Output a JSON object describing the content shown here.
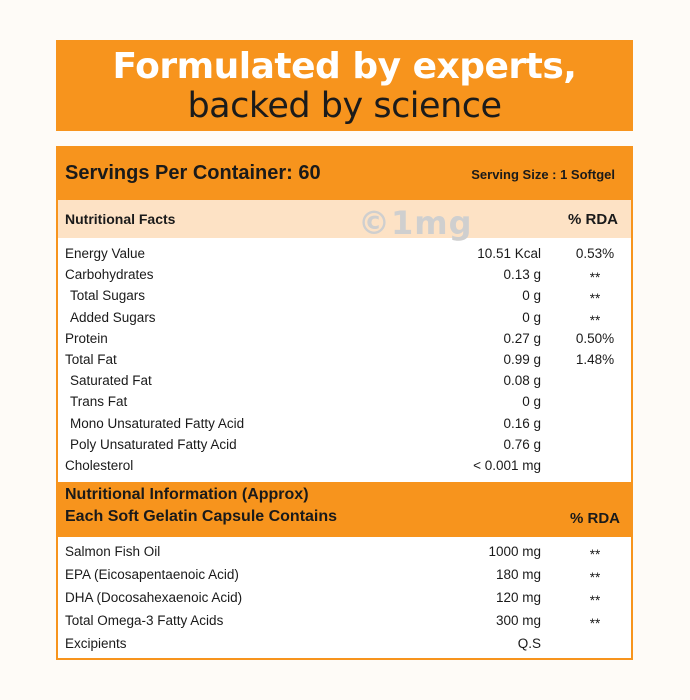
{
  "banner": {
    "line1": "Formulated by experts,",
    "line2": "backed by science"
  },
  "watermark": "©1mg",
  "facts": {
    "servings": "Servings Per Container: 60",
    "serving_size": "Serving Size : 1 Softgel",
    "title": "Nutritional Facts",
    "rda_header": "% RDA",
    "rows": [
      {
        "name": "Energy Value",
        "value": "10.51 Kcal",
        "rda": "0.53%",
        "indent": false
      },
      {
        "name": "Carbohydrates",
        "value": "0.13 g",
        "rda": "**",
        "indent": false
      },
      {
        "name": "Total Sugars",
        "value": "0 g",
        "rda": "**",
        "indent": true
      },
      {
        "name": "Added Sugars",
        "value": "0 g",
        "rda": "**",
        "indent": true
      },
      {
        "name": "Protein",
        "value": "0.27 g",
        "rda": "0.50%",
        "indent": false
      },
      {
        "name": "Total Fat",
        "value": "0.99 g",
        "rda": "1.48%",
        "indent": false
      },
      {
        "name": "Saturated Fat",
        "value": "0.08 g",
        "rda": "",
        "indent": true
      },
      {
        "name": "Trans Fat",
        "value": "0 g",
        "rda": "",
        "indent": true
      },
      {
        "name": "Mono Unsaturated Fatty Acid",
        "value": "0.16 g",
        "rda": "",
        "indent": true
      },
      {
        "name": "Poly Unsaturated Fatty Acid",
        "value": "0.76 g",
        "rda": "",
        "indent": true
      },
      {
        "name": "Cholesterol",
        "value": "< 0.001 mg",
        "rda": "",
        "indent": false
      }
    ]
  },
  "info": {
    "title_line1": "Nutritional Information (Approx)",
    "title_line2": "Each Soft Gelatin Capsule Contains",
    "rda_header": "% RDA",
    "rows": [
      {
        "name": "Salmon Fish Oil",
        "value": "1000 mg",
        "rda": "**"
      },
      {
        "name": "EPA (Eicosapentaenoic Acid)",
        "value": "180 mg",
        "rda": "**"
      },
      {
        "name": "DHA (Docosahexaenoic Acid)",
        "value": "120 mg",
        "rda": "**"
      },
      {
        "name": "Total Omega-3 Fatty Acids",
        "value": "300 mg",
        "rda": "**"
      },
      {
        "name": "Excipients",
        "value": "Q.S",
        "rda": ""
      }
    ]
  }
}
